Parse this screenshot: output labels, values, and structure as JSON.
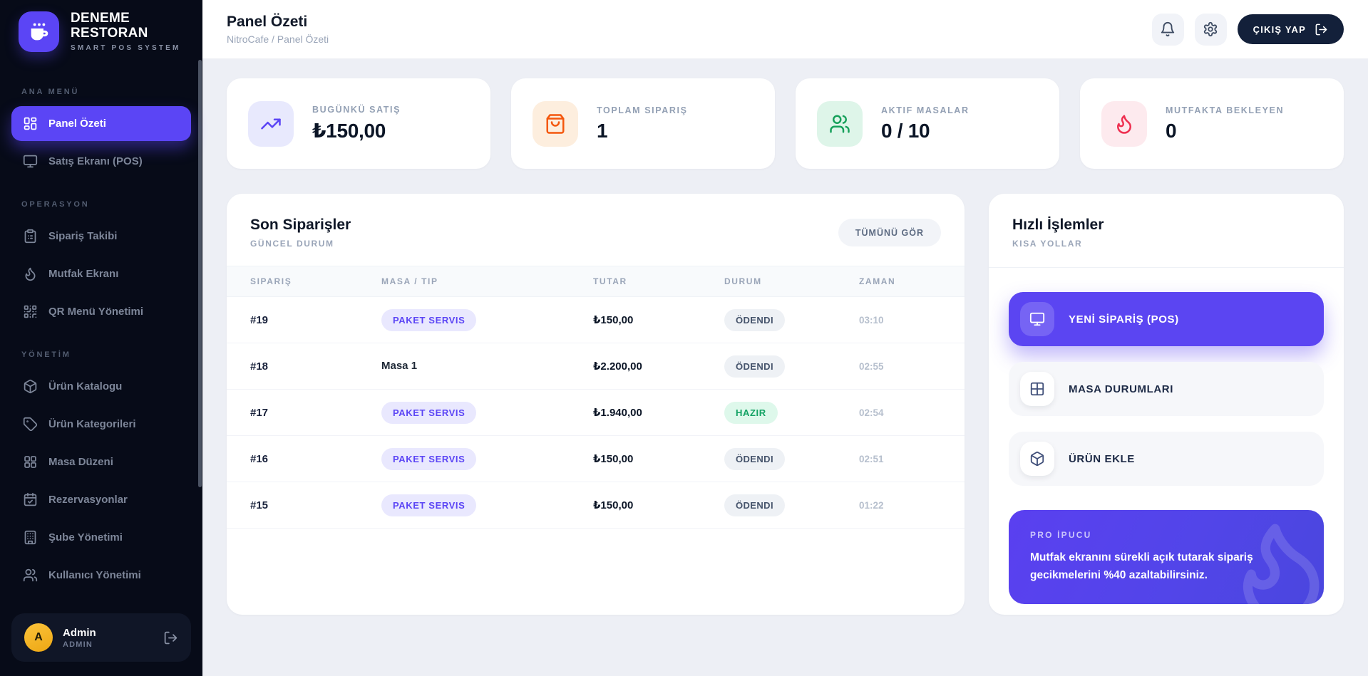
{
  "brand": {
    "name_line1": "DENEME",
    "name_line2": "RESTORAN",
    "subtitle": "SMART POS SYSTEM",
    "logo_icon": "coffee-cup-icon",
    "accent_color": "#5b45f5"
  },
  "sidebar": {
    "sections": [
      {
        "label": "ANA MENÜ",
        "items": [
          {
            "label": "Panel Özeti",
            "icon": "dashboard-icon",
            "active": true
          },
          {
            "label": "Satış Ekranı (POS)",
            "icon": "monitor-icon",
            "active": false
          }
        ]
      },
      {
        "label": "OPERASYON",
        "items": [
          {
            "label": "Sipariş Takibi",
            "icon": "clipboard-icon",
            "active": false
          },
          {
            "label": "Mutfak Ekranı",
            "icon": "flame-icon",
            "active": false
          },
          {
            "label": "QR Menü Yönetimi",
            "icon": "qr-code-icon",
            "active": false
          }
        ]
      },
      {
        "label": "YÖNETİM",
        "items": [
          {
            "label": "Ürün Katalogu",
            "icon": "package-icon",
            "active": false
          },
          {
            "label": "Ürün Kategorileri",
            "icon": "tag-icon",
            "active": false
          },
          {
            "label": "Masa Düzeni",
            "icon": "grid-icon",
            "active": false
          },
          {
            "label": "Rezervasyonlar",
            "icon": "calendar-check-icon",
            "active": false
          },
          {
            "label": "Şube Yönetimi",
            "icon": "building-icon",
            "active": false
          },
          {
            "label": "Kullanıcı Yönetimi",
            "icon": "users-icon",
            "active": false
          }
        ]
      }
    ],
    "user": {
      "initial": "A",
      "name": "Admin",
      "role": "ADMIN",
      "avatar_color": "#f0b429"
    }
  },
  "header": {
    "title": "Panel Özeti",
    "breadcrumb": "NitroCafe / Panel Özeti",
    "logout_label": "ÇIKIŞ YAP"
  },
  "stats": [
    {
      "label": "BUGÜNKÜ SATIŞ",
      "value": "₺150,00",
      "icon": "trending-up-icon",
      "color": "#5b45f5",
      "bg": "#e8e9fd"
    },
    {
      "label": "TOPLAM SIPARIŞ",
      "value": "1",
      "icon": "shopping-bag-icon",
      "color": "#f4570d",
      "bg": "#fdeede"
    },
    {
      "label": "AKTIF MASALAR",
      "value": "0 / 10",
      "icon": "users-icon",
      "color": "#16a05a",
      "bg": "#def5e9"
    },
    {
      "label": "MUTFAKTA BEKLEYEN",
      "value": "0",
      "icon": "flame-icon",
      "color": "#ee2f50",
      "bg": "#fdeaee"
    }
  ],
  "orders": {
    "title": "Son Siparişler",
    "subtitle": "GÜNCEL DURUM",
    "view_all_label": "TÜMÜNÜ GÖR",
    "columns": [
      "SIPARIŞ",
      "MASA / TIP",
      "TUTAR",
      "DURUM",
      "ZAMAN"
    ],
    "rows": [
      {
        "id": "#19",
        "type": "PAKET SERVIS",
        "type_badge": true,
        "amount": "₺150,00",
        "status": "ÖDENDI",
        "status_kind": "paid",
        "time": "03:10"
      },
      {
        "id": "#18",
        "type": "Masa 1",
        "type_badge": false,
        "amount": "₺2.200,00",
        "status": "ÖDENDI",
        "status_kind": "paid",
        "time": "02:55"
      },
      {
        "id": "#17",
        "type": "PAKET SERVIS",
        "type_badge": true,
        "amount": "₺1.940,00",
        "status": "HAZIR",
        "status_kind": "ready",
        "time": "02:54"
      },
      {
        "id": "#16",
        "type": "PAKET SERVIS",
        "type_badge": true,
        "amount": "₺150,00",
        "status": "ÖDENDI",
        "status_kind": "paid",
        "time": "02:51"
      },
      {
        "id": "#15",
        "type": "PAKET SERVIS",
        "type_badge": true,
        "amount": "₺150,00",
        "status": "ÖDENDI",
        "status_kind": "paid",
        "time": "01:22"
      }
    ]
  },
  "quick_actions": {
    "title": "Hızlı İşlemler",
    "subtitle": "KISA YOLLAR",
    "actions": [
      {
        "label": "YENİ SİPARİŞ (POS)",
        "icon": "monitor-icon",
        "primary": true
      },
      {
        "label": "MASA DURUMLARI",
        "icon": "table-icon",
        "primary": false
      },
      {
        "label": "ÜRÜN EKLE",
        "icon": "package-icon",
        "primary": false
      }
    ],
    "tip": {
      "label": "PRO İPUCU",
      "text": "Mutfak ekranını sürekli açık tutarak sipariş gecikmelerini %40 azaltabilirsiniz.",
      "icon": "flame-icon"
    }
  }
}
